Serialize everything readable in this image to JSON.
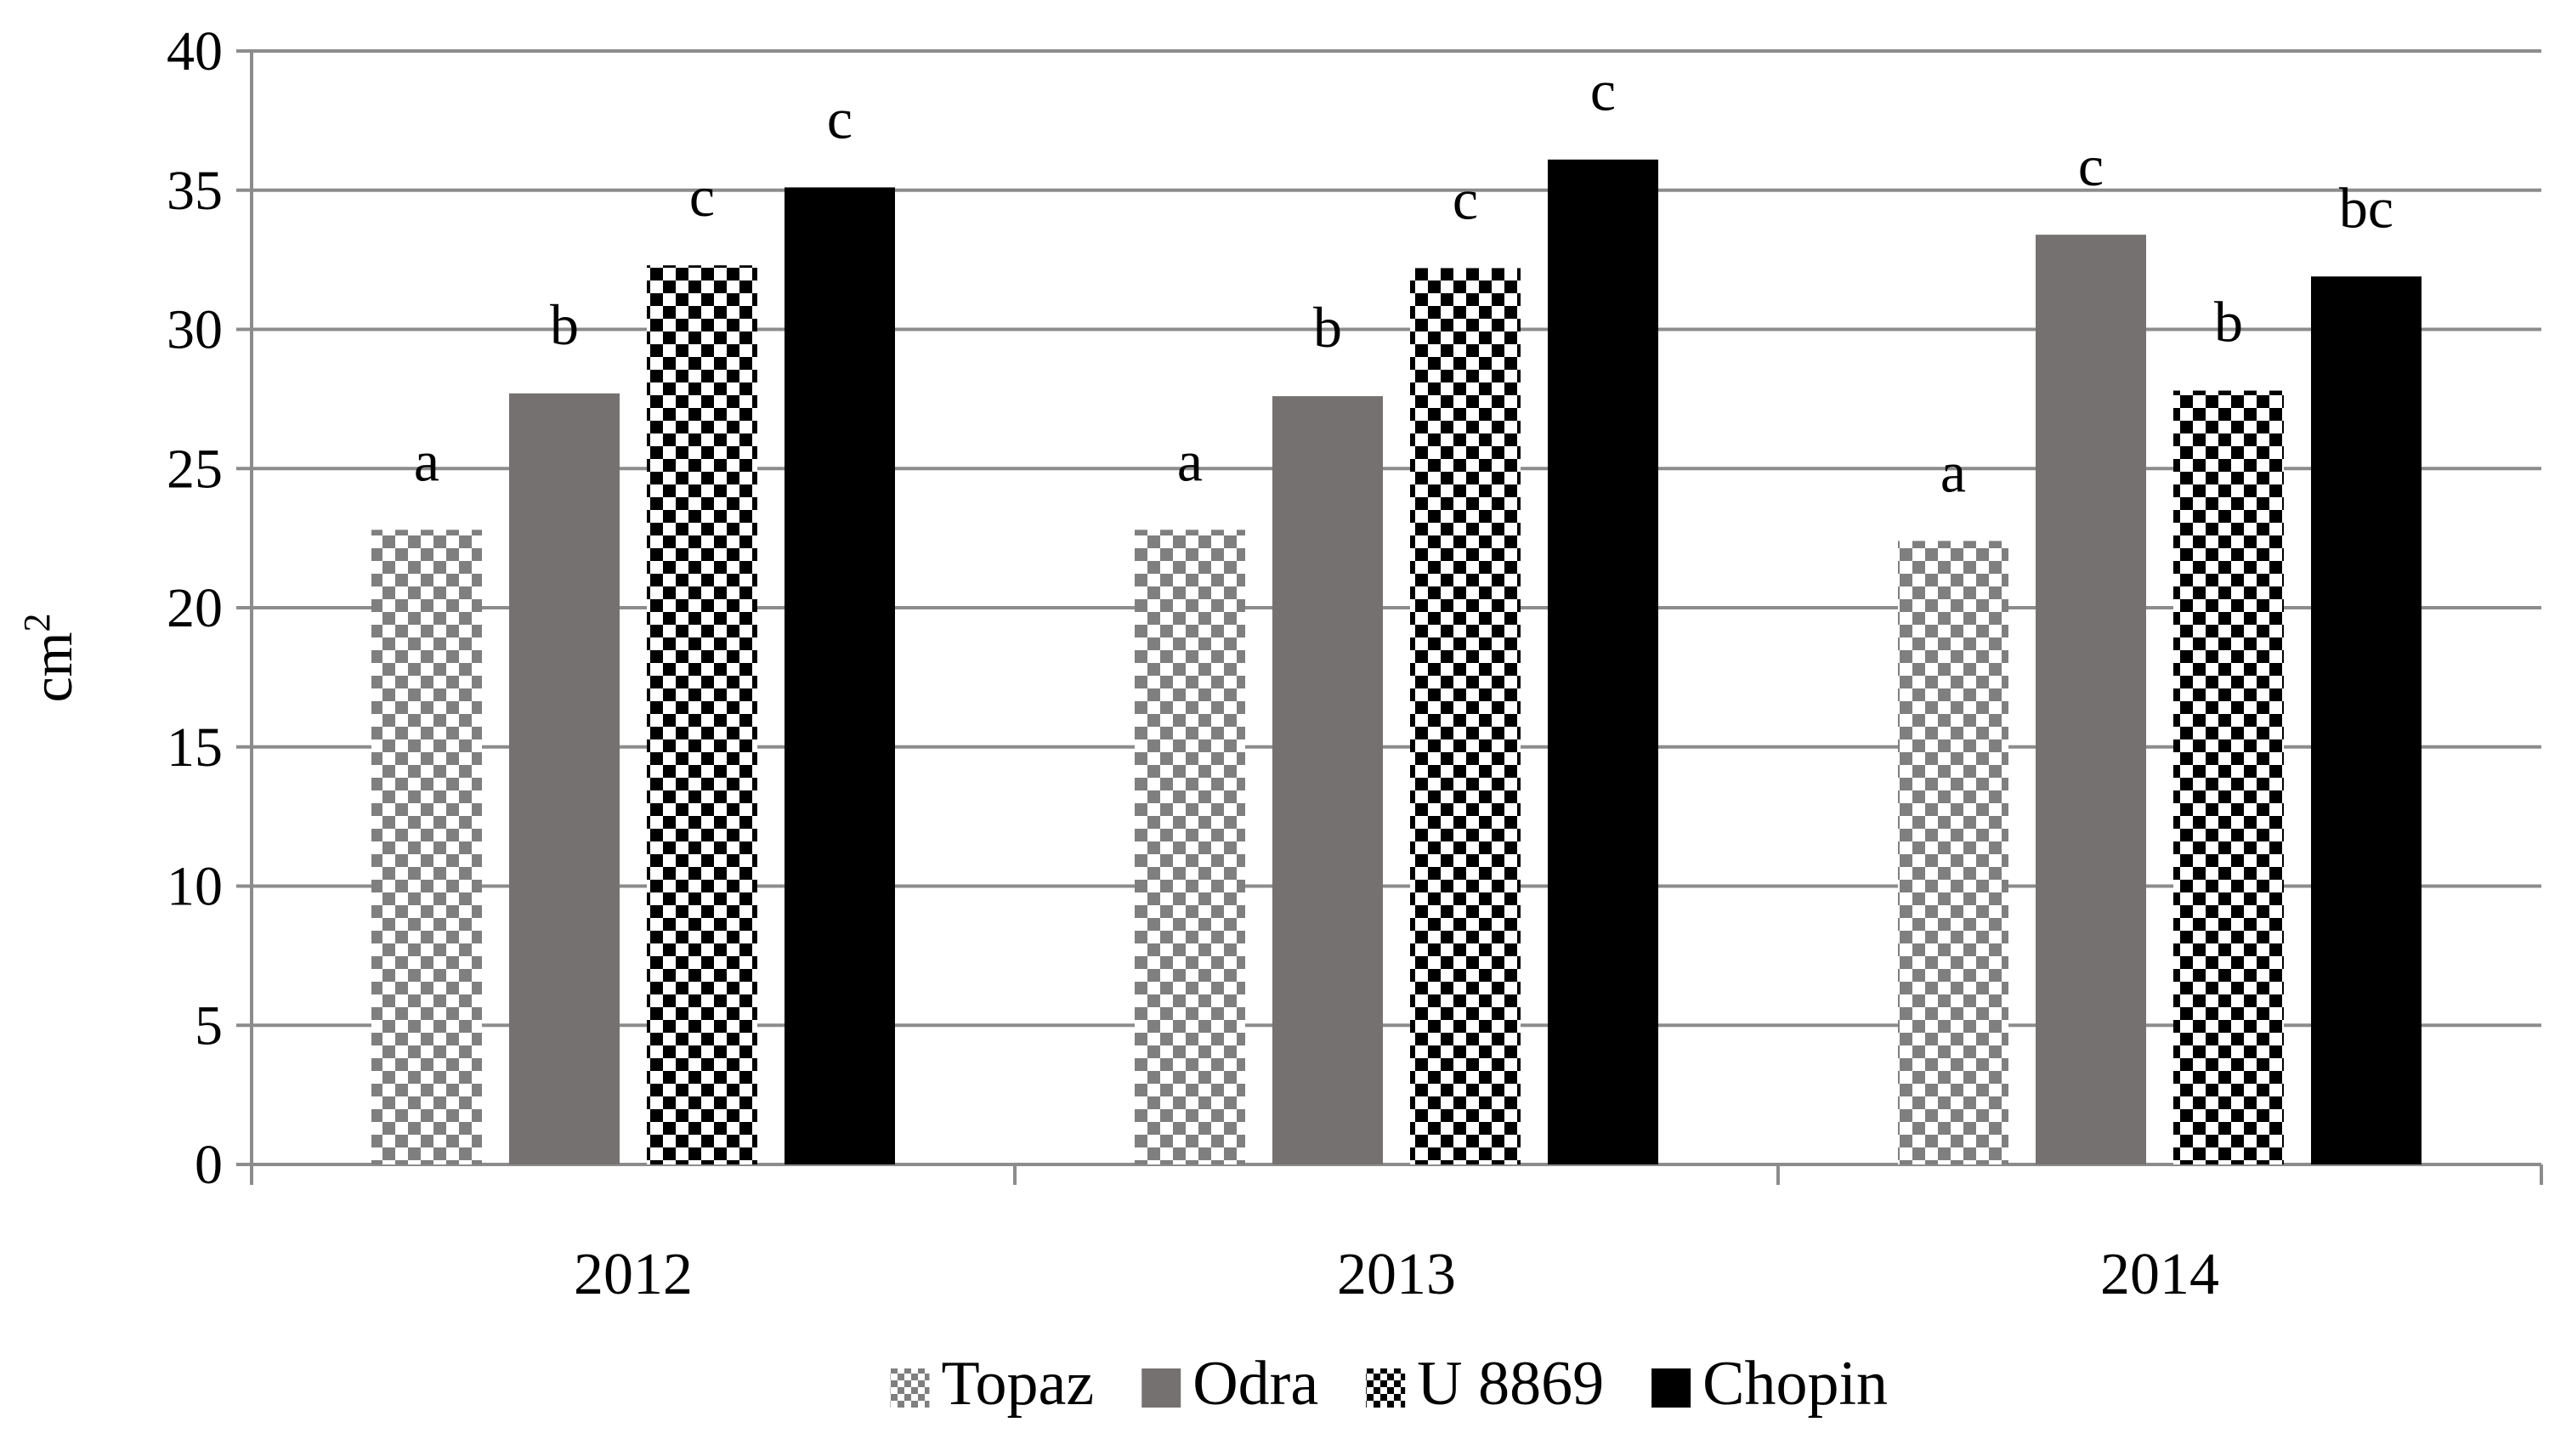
{
  "chart_data": {
    "type": "bar",
    "title": "",
    "xlabel": "",
    "ylabel": "cm",
    "ylabel_superscript": "2",
    "ylim": [
      0,
      40
    ],
    "yticks": [
      0,
      5,
      10,
      15,
      20,
      25,
      30,
      35,
      40
    ],
    "grid": true,
    "legend_position": "bottom",
    "categories": [
      "2012",
      "2013",
      "2014"
    ],
    "series": [
      {
        "name": "Topaz",
        "pattern": "checker-gray",
        "values": [
          22.8,
          22.8,
          22.4
        ],
        "letters": [
          "a",
          "a",
          "a"
        ]
      },
      {
        "name": "Odra",
        "pattern": "solid-gray",
        "values": [
          27.7,
          27.6,
          33.4
        ],
        "letters": [
          "b",
          "b",
          "c"
        ]
      },
      {
        "name": "U 8869",
        "pattern": "checker-black",
        "values": [
          32.3,
          32.2,
          27.8
        ],
        "letters": [
          "c",
          "c",
          "b"
        ]
      },
      {
        "name": "Chopin",
        "pattern": "solid-black",
        "values": [
          35.1,
          36.1,
          31.9
        ],
        "letters": [
          "c",
          "c",
          "bc"
        ]
      }
    ],
    "colors": {
      "gray_fill": "#767171",
      "checker_light": "#7f7f7f",
      "black": "#000000",
      "grid": "#8c8c8c",
      "axis": "#8c8c8c"
    }
  }
}
